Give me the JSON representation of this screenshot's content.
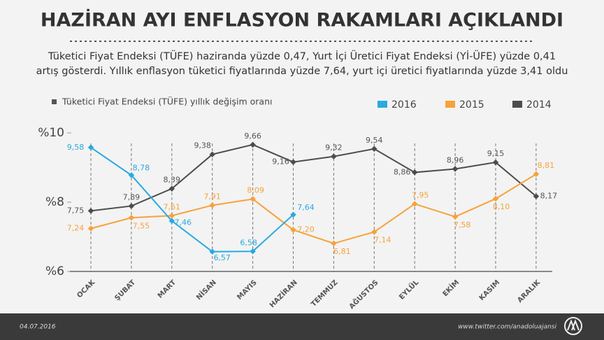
{
  "chart_data": {
    "type": "line",
    "title": "HAZİRAN AYI ENFLASYON RAKAMLARI AÇIKLANDI",
    "subtitle": [
      "Tüketici Fiyat Endeksi (TÜFE) haziranda yüzde 0,47, Yurt İçi Üretici Fiyat Endeksi (Yİ-ÜFE) yüzde 0,41",
      "artış gösterdi. Yıllık enflasyon tüketici fiyatlarında yüzde 7,64, yurt içi üretici fiyatlarında yüzde 3,41 oldu"
    ],
    "legend_title": "Tüketici Fiyat Endeksi (TÜFE) yıllık değişim oranı",
    "categories": [
      "OCAK",
      "ŞUBAT",
      "MART",
      "NİSAN",
      "MAYIS",
      "HAZİRAN",
      "TEMMUZ",
      "AĞUSTOS",
      "EYLÜL",
      "EKİM",
      "KASIM",
      "ARALIK"
    ],
    "series": [
      {
        "name": "2016",
        "color": "#29a9e1",
        "values": [
          9.58,
          8.78,
          7.46,
          6.57,
          6.58,
          7.64,
          null,
          null,
          null,
          null,
          null,
          null
        ],
        "value_labels": [
          "9,58",
          "8,78",
          "7,46",
          "6,57",
          "6,58",
          "7,64",
          null,
          null,
          null,
          null,
          null,
          null
        ]
      },
      {
        "name": "2015",
        "color": "#f7a23b",
        "values": [
          7.24,
          7.55,
          7.61,
          7.91,
          8.09,
          7.2,
          6.81,
          7.14,
          7.95,
          7.58,
          8.1,
          8.81
        ],
        "value_labels": [
          "7,24",
          "7,55",
          "7,61",
          "7,91",
          "8,09",
          "7,20",
          "6,81",
          "7,14",
          "7,95",
          "7,58",
          "8,10",
          "8,81"
        ]
      },
      {
        "name": "2014",
        "color": "#4d4d4d",
        "values": [
          7.75,
          7.89,
          8.39,
          9.38,
          9.66,
          9.16,
          9.32,
          9.54,
          8.86,
          8.96,
          9.15,
          8.17
        ],
        "value_labels": [
          "7,75",
          "7,89",
          "8,39",
          "9,38",
          "9,66",
          "9,16",
          "9,32",
          "9,54",
          "8,86",
          "8,96",
          "9,15",
          "8,17"
        ]
      }
    ],
    "ylim": [
      6,
      10
    ],
    "yticks": [
      {
        "value": 10,
        "label": "%10"
      },
      {
        "value": 8,
        "label": "%8"
      },
      {
        "value": 6,
        "label": "%6"
      }
    ],
    "footer_date": "04.07.2016",
    "footer_source": "www.twitter.com/anadoluajansi"
  }
}
